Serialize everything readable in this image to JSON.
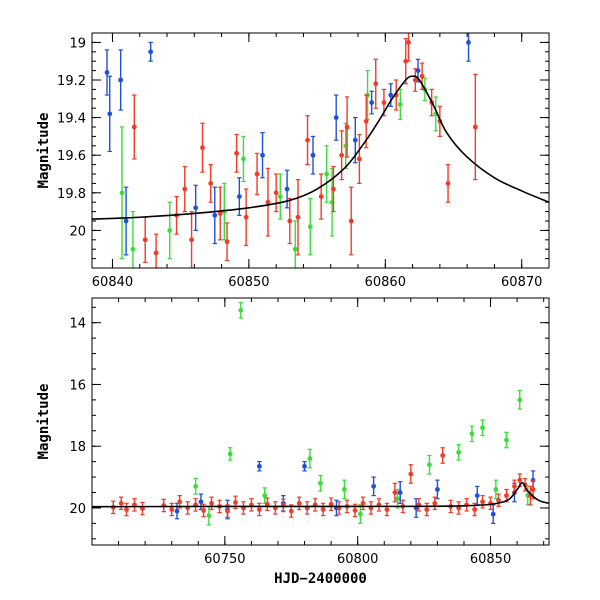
{
  "chart_data": [
    {
      "type": "scatter",
      "title": "",
      "xlabel": "",
      "ylabel": "Magnitude",
      "xlim": [
        60838.5,
        60872
      ],
      "ylim": [
        20.2,
        18.95
      ],
      "y_inverted": true,
      "xticks": [
        60840,
        60850,
        60860,
        60870
      ],
      "yticks": [
        19,
        19.2,
        19.4,
        19.6,
        19.8,
        20
      ],
      "ytick_labels": [
        "19",
        "19.2",
        "19.4",
        "19.6",
        "19.8",
        "20"
      ],
      "colors": {
        "red": "#f03c28",
        "green": "#3cdc3c",
        "blue": "#1e50dc",
        "model": "#000000"
      },
      "model_curve": {
        "x": [
          60838.5,
          60842,
          60846,
          60850,
          60853,
          60855,
          60857,
          60858.5,
          60859.5,
          60860.5,
          60861.5,
          60862,
          60862.5,
          60863.5,
          60864.5,
          60866,
          60868,
          60870,
          60872
        ],
        "y": [
          19.94,
          19.93,
          19.91,
          19.88,
          19.84,
          19.78,
          19.67,
          19.53,
          19.42,
          19.3,
          19.2,
          19.18,
          19.2,
          19.33,
          19.48,
          19.61,
          19.72,
          19.79,
          19.85
        ]
      },
      "series": [
        {
          "color": "red",
          "points": [
            {
              "x": 60841.6,
              "y": 19.45,
              "err": 0.17
            },
            {
              "x": 60842.4,
              "y": 20.05,
              "err": 0.12
            },
            {
              "x": 60843.2,
              "y": 20.12,
              "err": 0.1
            },
            {
              "x": 60844.7,
              "y": 19.92,
              "err": 0.1
            },
            {
              "x": 60845.3,
              "y": 19.78,
              "err": 0.12
            },
            {
              "x": 60845.8,
              "y": 20.05,
              "err": 0.15
            },
            {
              "x": 60846.6,
              "y": 19.56,
              "err": 0.13
            },
            {
              "x": 60847.2,
              "y": 19.75,
              "err": 0.1
            },
            {
              "x": 60847.9,
              "y": 19.91,
              "err": 0.14
            },
            {
              "x": 60848.4,
              "y": 20.06,
              "err": 0.1
            },
            {
              "x": 60849.1,
              "y": 19.59,
              "err": 0.1
            },
            {
              "x": 60849.8,
              "y": 19.93,
              "err": 0.15
            },
            {
              "x": 60850.6,
              "y": 19.7,
              "err": 0.11
            },
            {
              "x": 60851.4,
              "y": 19.85,
              "err": 0.18
            },
            {
              "x": 60852.0,
              "y": 19.8,
              "err": 0.1
            },
            {
              "x": 60853.0,
              "y": 19.95,
              "err": 0.12
            },
            {
              "x": 60853.6,
              "y": 19.93,
              "err": 0.2
            },
            {
              "x": 60854.3,
              "y": 19.52,
              "err": 0.13
            },
            {
              "x": 60855.3,
              "y": 19.82,
              "err": 0.12
            },
            {
              "x": 60856.2,
              "y": 19.78,
              "err": 0.12
            },
            {
              "x": 60856.8,
              "y": 19.6,
              "err": 0.13
            },
            {
              "x": 60857.2,
              "y": 19.45,
              "err": 0.16
            },
            {
              "x": 60857.5,
              "y": 19.95,
              "err": 0.18
            },
            {
              "x": 60858.1,
              "y": 19.62,
              "err": 0.13
            },
            {
              "x": 60858.6,
              "y": 19.42,
              "err": 0.14
            },
            {
              "x": 60859.3,
              "y": 19.22,
              "err": 0.13
            },
            {
              "x": 60859.9,
              "y": 19.32,
              "err": 0.07
            },
            {
              "x": 60860.8,
              "y": 19.28,
              "err": 0.08
            },
            {
              "x": 60861.5,
              "y": 19.1,
              "err": 0.12
            },
            {
              "x": 60861.7,
              "y": 19.0,
              "err": 0.1
            },
            {
              "x": 60862.2,
              "y": 19.2,
              "err": 0.06
            },
            {
              "x": 60862.7,
              "y": 19.18,
              "err": 0.07
            },
            {
              "x": 60863.4,
              "y": 19.32,
              "err": 0.07
            },
            {
              "x": 60864.0,
              "y": 19.42,
              "err": 0.08
            },
            {
              "x": 60864.6,
              "y": 19.75,
              "err": 0.1
            },
            {
              "x": 60866.6,
              "y": 19.45,
              "err": 0.28
            }
          ]
        },
        {
          "color": "green",
          "points": [
            {
              "x": 60840.7,
              "y": 19.8,
              "err": 0.35
            },
            {
              "x": 60841.5,
              "y": 20.1,
              "err": 0.2
            },
            {
              "x": 60844.2,
              "y": 20.0,
              "err": 0.15
            },
            {
              "x": 60848.2,
              "y": 19.9,
              "err": 0.15
            },
            {
              "x": 60849.6,
              "y": 19.62,
              "err": 0.12
            },
            {
              "x": 60852.3,
              "y": 19.82,
              "err": 0.12
            },
            {
              "x": 60853.4,
              "y": 20.1,
              "err": 0.15
            },
            {
              "x": 60854.5,
              "y": 19.98,
              "err": 0.15
            },
            {
              "x": 60855.7,
              "y": 19.7,
              "err": 0.15
            },
            {
              "x": 60856.1,
              "y": 19.85,
              "err": 0.18
            },
            {
              "x": 60857.1,
              "y": 19.55,
              "err": 0.12
            },
            {
              "x": 60858.7,
              "y": 19.28,
              "err": 0.13
            },
            {
              "x": 60861.1,
              "y": 19.33,
              "err": 0.08
            },
            {
              "x": 60862.9,
              "y": 19.25,
              "err": 0.06
            },
            {
              "x": 60863.7,
              "y": 19.38,
              "err": 0.09
            }
          ]
        },
        {
          "color": "blue",
          "points": [
            {
              "x": 60839.6,
              "y": 19.16,
              "err": 0.12
            },
            {
              "x": 60839.8,
              "y": 19.38,
              "err": 0.2
            },
            {
              "x": 60840.6,
              "y": 19.2,
              "err": 0.16
            },
            {
              "x": 60841.0,
              "y": 19.95,
              "err": 0.18
            },
            {
              "x": 60842.8,
              "y": 19.05,
              "err": 0.05
            },
            {
              "x": 60846.1,
              "y": 19.88,
              "err": 0.12
            },
            {
              "x": 60847.5,
              "y": 19.92,
              "err": 0.15
            },
            {
              "x": 60849.3,
              "y": 19.82,
              "err": 0.1
            },
            {
              "x": 60851.0,
              "y": 19.6,
              "err": 0.12
            },
            {
              "x": 60852.8,
              "y": 19.78,
              "err": 0.1
            },
            {
              "x": 60854.7,
              "y": 19.6,
              "err": 0.1
            },
            {
              "x": 60856.4,
              "y": 19.4,
              "err": 0.12
            },
            {
              "x": 60857.8,
              "y": 19.52,
              "err": 0.12
            },
            {
              "x": 60859.0,
              "y": 19.32,
              "err": 0.06
            },
            {
              "x": 60860.4,
              "y": 19.28,
              "err": 0.06
            },
            {
              "x": 60862.4,
              "y": 19.15,
              "err": 0.06
            },
            {
              "x": 60866.1,
              "y": 19.0,
              "err": 0.1
            }
          ]
        }
      ]
    },
    {
      "type": "scatter",
      "title": "",
      "xlabel": "HJD−2400000",
      "ylabel": "Magnitude",
      "xlim": [
        60700,
        60872
      ],
      "ylim": [
        21.2,
        13.2
      ],
      "y_inverted": true,
      "xticks": [
        60750,
        60800,
        60850
      ],
      "yticks": [
        14,
        16,
        18,
        20
      ],
      "ytick_labels": [
        "14",
        "16",
        "18",
        "20"
      ],
      "colors": {
        "red": "#f03c28",
        "green": "#3cdc3c",
        "blue": "#1e50dc",
        "model": "#000000"
      },
      "model_curve": {
        "x": [
          60700,
          60750,
          60800,
          60840,
          60855,
          60860,
          60862,
          60864,
          60868,
          60872
        ],
        "y": [
          19.96,
          19.95,
          19.95,
          19.93,
          19.8,
          19.4,
          19.18,
          19.45,
          19.75,
          19.85
        ]
      },
      "series": [
        {
          "color": "red",
          "points": [
            {
              "x": 60708,
              "y": 19.98,
              "err": 0.2
            },
            {
              "x": 60711,
              "y": 19.85,
              "err": 0.2
            },
            {
              "x": 60713,
              "y": 20.05,
              "err": 0.2
            },
            {
              "x": 60716,
              "y": 19.9,
              "err": 0.2
            },
            {
              "x": 60719,
              "y": 20.02,
              "err": 0.2
            },
            {
              "x": 60727,
              "y": 19.92,
              "err": 0.2
            },
            {
              "x": 60730,
              "y": 20.05,
              "err": 0.2
            },
            {
              "x": 60733,
              "y": 19.8,
              "err": 0.2
            },
            {
              "x": 60736,
              "y": 20.0,
              "err": 0.2
            },
            {
              "x": 60739,
              "y": 19.9,
              "err": 0.2
            },
            {
              "x": 60742,
              "y": 20.08,
              "err": 0.2
            },
            {
              "x": 60745,
              "y": 19.85,
              "err": 0.2
            },
            {
              "x": 60748,
              "y": 19.95,
              "err": 0.2
            },
            {
              "x": 60751,
              "y": 20.1,
              "err": 0.2
            },
            {
              "x": 60754,
              "y": 19.82,
              "err": 0.2
            },
            {
              "x": 60757,
              "y": 20.0,
              "err": 0.2
            },
            {
              "x": 60760,
              "y": 19.9,
              "err": 0.2
            },
            {
              "x": 60763,
              "y": 20.05,
              "err": 0.2
            },
            {
              "x": 60766,
              "y": 19.88,
              "err": 0.2
            },
            {
              "x": 60769,
              "y": 20.0,
              "err": 0.2
            },
            {
              "x": 60772,
              "y": 19.92,
              "err": 0.2
            },
            {
              "x": 60775,
              "y": 20.1,
              "err": 0.2
            },
            {
              "x": 60778,
              "y": 19.85,
              "err": 0.2
            },
            {
              "x": 60781,
              "y": 20.0,
              "err": 0.2
            },
            {
              "x": 60784,
              "y": 19.9,
              "err": 0.2
            },
            {
              "x": 60787,
              "y": 20.05,
              "err": 0.2
            },
            {
              "x": 60790,
              "y": 19.88,
              "err": 0.2
            },
            {
              "x": 60793,
              "y": 20.0,
              "err": 0.2
            },
            {
              "x": 60796,
              "y": 19.95,
              "err": 0.2
            },
            {
              "x": 60799,
              "y": 20.08,
              "err": 0.2
            },
            {
              "x": 60802,
              "y": 19.85,
              "err": 0.2
            },
            {
              "x": 60805,
              "y": 20.0,
              "err": 0.2
            },
            {
              "x": 60808,
              "y": 19.9,
              "err": 0.2
            },
            {
              "x": 60811,
              "y": 20.05,
              "err": 0.2
            },
            {
              "x": 60814,
              "y": 19.5,
              "err": 0.3
            },
            {
              "x": 60817,
              "y": 19.95,
              "err": 0.2
            },
            {
              "x": 60820,
              "y": 18.9,
              "err": 0.3
            },
            {
              "x": 60823,
              "y": 19.9,
              "err": 0.2
            },
            {
              "x": 60826,
              "y": 20.05,
              "err": 0.2
            },
            {
              "x": 60829,
              "y": 19.85,
              "err": 0.2
            },
            {
              "x": 60832,
              "y": 18.3,
              "err": 0.25
            },
            {
              "x": 60835,
              "y": 19.95,
              "err": 0.2
            },
            {
              "x": 60838,
              "y": 20.0,
              "err": 0.2
            },
            {
              "x": 60841,
              "y": 19.9,
              "err": 0.2
            },
            {
              "x": 60844,
              "y": 20.05,
              "err": 0.2
            },
            {
              "x": 60847,
              "y": 19.8,
              "err": 0.2
            },
            {
              "x": 60850,
              "y": 19.85,
              "err": 0.2
            },
            {
              "x": 60853,
              "y": 19.75,
              "err": 0.2
            },
            {
              "x": 60856,
              "y": 19.6,
              "err": 0.2
            },
            {
              "x": 60859,
              "y": 19.3,
              "err": 0.2
            },
            {
              "x": 60861,
              "y": 19.1,
              "err": 0.2
            },
            {
              "x": 60863,
              "y": 19.25,
              "err": 0.2
            },
            {
              "x": 60865,
              "y": 19.6,
              "err": 0.3
            },
            {
              "x": 60866,
              "y": 19.4,
              "err": 0.3
            }
          ]
        },
        {
          "color": "green",
          "points": [
            {
              "x": 60756,
              "y": 13.6,
              "err": 0.25
            },
            {
              "x": 60739,
              "y": 19.3,
              "err": 0.25
            },
            {
              "x": 60744,
              "y": 20.25,
              "err": 0.3
            },
            {
              "x": 60752,
              "y": 18.25,
              "err": 0.2
            },
            {
              "x": 60765,
              "y": 19.6,
              "err": 0.25
            },
            {
              "x": 60782,
              "y": 18.4,
              "err": 0.3
            },
            {
              "x": 60786,
              "y": 19.2,
              "err": 0.25
            },
            {
              "x": 60795,
              "y": 19.4,
              "err": 0.3
            },
            {
              "x": 60801,
              "y": 20.2,
              "err": 0.3
            },
            {
              "x": 60815,
              "y": 19.7,
              "err": 0.3
            },
            {
              "x": 60827,
              "y": 18.6,
              "err": 0.3
            },
            {
              "x": 60838,
              "y": 18.2,
              "err": 0.25
            },
            {
              "x": 60843,
              "y": 17.6,
              "err": 0.25
            },
            {
              "x": 60847,
              "y": 17.4,
              "err": 0.25
            },
            {
              "x": 60852,
              "y": 19.4,
              "err": 0.3
            },
            {
              "x": 60856,
              "y": 17.8,
              "err": 0.25
            },
            {
              "x": 60861,
              "y": 16.5,
              "err": 0.3
            },
            {
              "x": 60864,
              "y": 19.6,
              "err": 0.3
            }
          ]
        },
        {
          "color": "blue",
          "points": [
            {
              "x": 60732,
              "y": 20.1,
              "err": 0.25
            },
            {
              "x": 60741,
              "y": 19.8,
              "err": 0.25
            },
            {
              "x": 60751,
              "y": 20.05,
              "err": 0.3
            },
            {
              "x": 60763,
              "y": 18.65,
              "err": 0.15
            },
            {
              "x": 60772,
              "y": 19.85,
              "err": 0.25
            },
            {
              "x": 60780,
              "y": 18.65,
              "err": 0.15
            },
            {
              "x": 60792,
              "y": 20.0,
              "err": 0.25
            },
            {
              "x": 60806,
              "y": 19.3,
              "err": 0.3
            },
            {
              "x": 60816,
              "y": 19.5,
              "err": 0.35
            },
            {
              "x": 60822,
              "y": 20.0,
              "err": 0.3
            },
            {
              "x": 60830,
              "y": 19.4,
              "err": 0.3
            },
            {
              "x": 60845,
              "y": 19.6,
              "err": 0.3
            },
            {
              "x": 60851,
              "y": 20.2,
              "err": 0.3
            },
            {
              "x": 60859,
              "y": 19.5,
              "err": 0.3
            },
            {
              "x": 60866,
              "y": 19.1,
              "err": 0.3
            }
          ]
        }
      ]
    }
  ]
}
